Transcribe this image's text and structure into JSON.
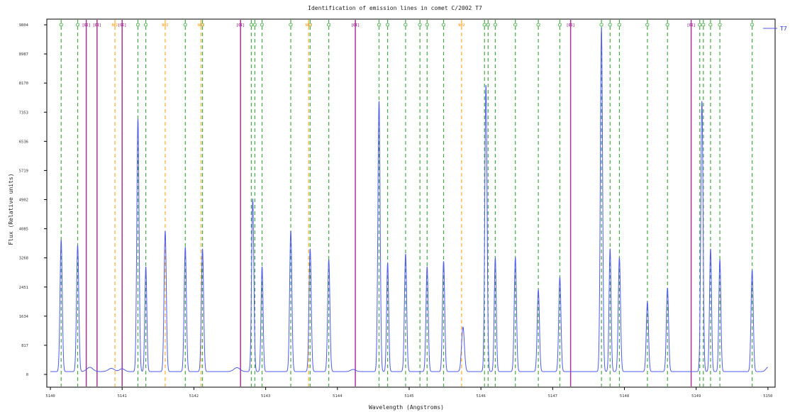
{
  "chart_data": {
    "type": "line",
    "title": "Identification of emission lines in comet C/2002 T7",
    "xlabel": "Wavelength (Angstroms)",
    "ylabel": "Flux (Relative units)",
    "xlim": [
      5139.95,
      5150.1
    ],
    "ylim": [
      0,
      9804
    ],
    "yticks": [
      0,
      817,
      1634,
      2451,
      3268,
      4085,
      4902,
      5719,
      6536,
      7353,
      8170,
      8987,
      9804
    ],
    "ytick_labels": [
      "0",
      "817",
      "1634",
      "2451",
      "3268",
      "4085",
      "4902",
      "5719",
      "6536",
      "7353",
      "8170",
      "8987",
      "9804"
    ],
    "xticks": [
      5140,
      5141,
      5142,
      5143,
      5144,
      5145,
      5146,
      5147,
      5148,
      5149,
      5150
    ],
    "xtick_labels": [
      "5140",
      "5141",
      "5142",
      "5143",
      "5144",
      "5145",
      "5146",
      "5147",
      "5148",
      "5149",
      "5150"
    ],
    "grid": false,
    "legend_position": "top-right",
    "series": [
      {
        "name": "T7",
        "color": "#4f5bea",
        "baseline": 80,
        "peaks": [
          [
            5140.15,
            3700,
            0.022
          ],
          [
            5140.38,
            3550,
            0.022
          ],
          [
            5140.55,
            120,
            0.06
          ],
          [
            5140.85,
            90,
            0.06
          ],
          [
            5141.0,
            80,
            0.05
          ],
          [
            5141.22,
            7100,
            0.022
          ],
          [
            5141.33,
            2950,
            0.02
          ],
          [
            5141.6,
            3950,
            0.022
          ],
          [
            5141.88,
            3500,
            0.022
          ],
          [
            5142.12,
            3450,
            0.022
          ],
          [
            5142.6,
            110,
            0.06
          ],
          [
            5142.82,
            4850,
            0.022
          ],
          [
            5142.95,
            2950,
            0.02
          ],
          [
            5143.35,
            3950,
            0.022
          ],
          [
            5143.62,
            3450,
            0.022
          ],
          [
            5143.88,
            3150,
            0.022
          ],
          [
            5144.22,
            60,
            0.05
          ],
          [
            5144.58,
            7600,
            0.022
          ],
          [
            5144.7,
            3050,
            0.02
          ],
          [
            5144.95,
            3300,
            0.022
          ],
          [
            5145.25,
            2950,
            0.022
          ],
          [
            5145.48,
            3100,
            0.022
          ],
          [
            5145.75,
            1250,
            0.028
          ],
          [
            5146.07,
            8050,
            0.022
          ],
          [
            5146.2,
            3200,
            0.02
          ],
          [
            5146.48,
            3200,
            0.022
          ],
          [
            5146.8,
            2300,
            0.022
          ],
          [
            5147.1,
            2650,
            0.022
          ],
          [
            5147.68,
            9650,
            0.022
          ],
          [
            5147.8,
            3450,
            0.02
          ],
          [
            5147.93,
            3200,
            0.022
          ],
          [
            5148.32,
            1950,
            0.022
          ],
          [
            5148.6,
            2350,
            0.022
          ],
          [
            5149.08,
            7600,
            0.022
          ],
          [
            5149.2,
            3450,
            0.02
          ],
          [
            5149.33,
            3150,
            0.02
          ],
          [
            5149.78,
            2850,
            0.022
          ],
          [
            5150.0,
            120,
            0.04
          ]
        ]
      }
    ],
    "line_markers": [
      {
        "label": "C2",
        "color": "#44aa44",
        "style": "dashed",
        "x": [
          5140.15,
          5140.38,
          5141.22,
          5141.33,
          5141.88,
          5142.12,
          5142.8,
          5142.85,
          5142.95,
          5143.35,
          5143.62,
          5143.88,
          5144.58,
          5144.7,
          5144.95,
          5145.15,
          5145.25,
          5145.48,
          5146.05,
          5146.1,
          5146.2,
          5146.48,
          5146.8,
          5147.1,
          5147.68,
          5147.8,
          5147.93,
          5148.32,
          5148.6,
          5149.05,
          5149.1,
          5149.2,
          5149.33,
          5149.78
        ]
      },
      {
        "label": "NH2",
        "color": "#ffaa33",
        "style": "dashed",
        "x": [
          5140.9,
          5141.6,
          5142.1,
          5143.6,
          5145.73
        ]
      },
      {
        "label": "[OI]",
        "color": "#aa3399",
        "style": "solid",
        "x": [
          5140.5,
          5140.65,
          5141.0,
          5142.65,
          5144.25,
          5147.25,
          5148.93
        ]
      }
    ]
  }
}
